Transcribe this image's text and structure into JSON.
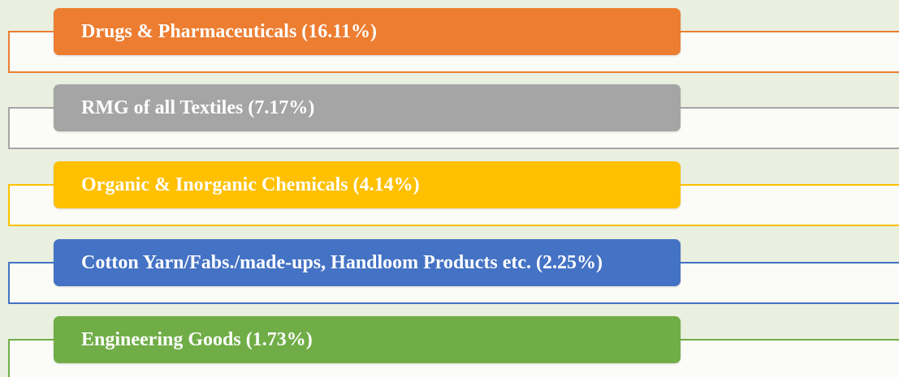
{
  "items": [
    {
      "label": "Drugs & Pharmaceuticals (16.11%)",
      "color": "#ed7d31"
    },
    {
      "label": "RMG of all Textiles (7.17%)",
      "color": "#a5a5a5"
    },
    {
      "label": "Organic & Inorganic Chemicals (4.14%)",
      "color": "#ffc000"
    },
    {
      "label": "Cotton Yarn/Fabs./made-ups, Handloom Products etc. (2.25%)",
      "color": "#4472c4"
    },
    {
      "label": "Engineering Goods (1.73%)",
      "color": "#70ad47"
    }
  ]
}
